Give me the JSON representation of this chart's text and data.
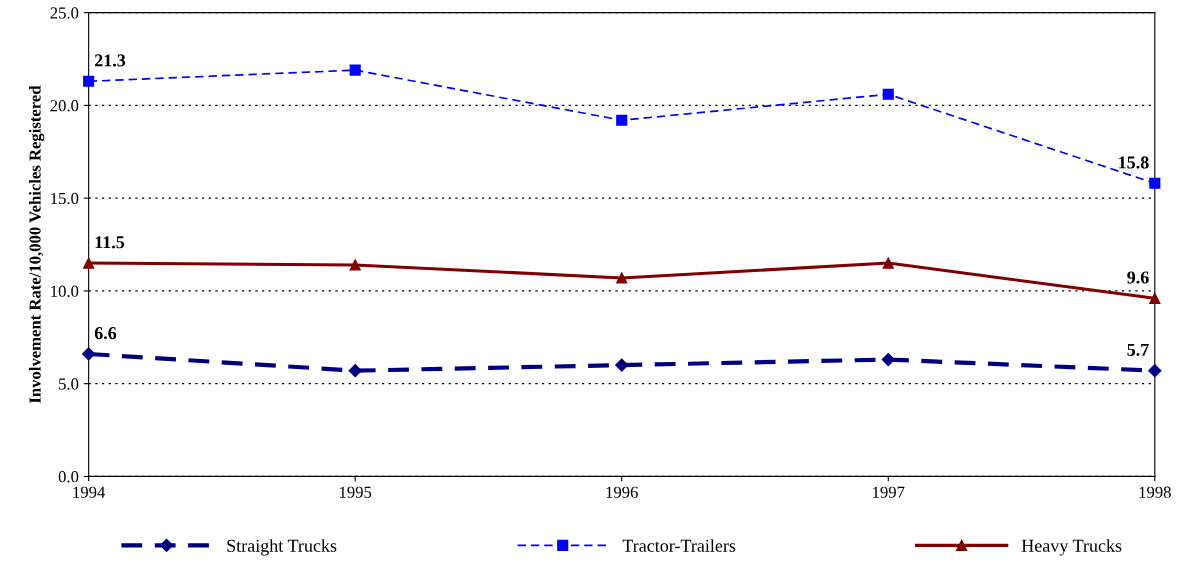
{
  "chart_data": {
    "type": "line",
    "ylabel": "Involvement Rate/10,000 Vehicles Registered",
    "x": [
      1994,
      1995,
      1996,
      1997,
      1998
    ],
    "series": [
      {
        "name": "Straight Trucks",
        "color": "#000080",
        "values": [
          6.6,
          5.7,
          6.0,
          6.3,
          5.7
        ],
        "marker": "diamond",
        "line_style": "dashed",
        "value_labels": [
          "6.6",
          null,
          null,
          null,
          "5.7"
        ]
      },
      {
        "name": "Tractor-Trailers",
        "color": "#0000ff",
        "values": [
          21.3,
          21.9,
          19.2,
          20.6,
          15.8
        ],
        "marker": "square",
        "line_style": "dashed",
        "value_labels": [
          "21.3",
          null,
          null,
          null,
          "15.8"
        ]
      },
      {
        "name": "Heavy Trucks",
        "color": "#800000",
        "values": [
          11.5,
          11.4,
          10.7,
          11.5,
          9.6
        ],
        "marker": "triangle",
        "line_style": "solid",
        "value_labels": [
          "11.5",
          null,
          null,
          null,
          "9.6"
        ]
      }
    ],
    "xlim": [
      1994,
      1998
    ],
    "xticks": [
      1994,
      1995,
      1996,
      1997,
      1998
    ],
    "ylim": [
      0,
      25
    ],
    "yticks": [
      {
        "value": 0,
        "label": "0.0"
      },
      {
        "value": 5,
        "label": "5.0"
      },
      {
        "value": 10,
        "label": "10.0"
      },
      {
        "value": 15,
        "label": "15.0"
      },
      {
        "value": 20,
        "label": "20.0"
      },
      {
        "value": 25,
        "label": "25.0"
      }
    ],
    "grid": "y",
    "legend": "bottom"
  }
}
